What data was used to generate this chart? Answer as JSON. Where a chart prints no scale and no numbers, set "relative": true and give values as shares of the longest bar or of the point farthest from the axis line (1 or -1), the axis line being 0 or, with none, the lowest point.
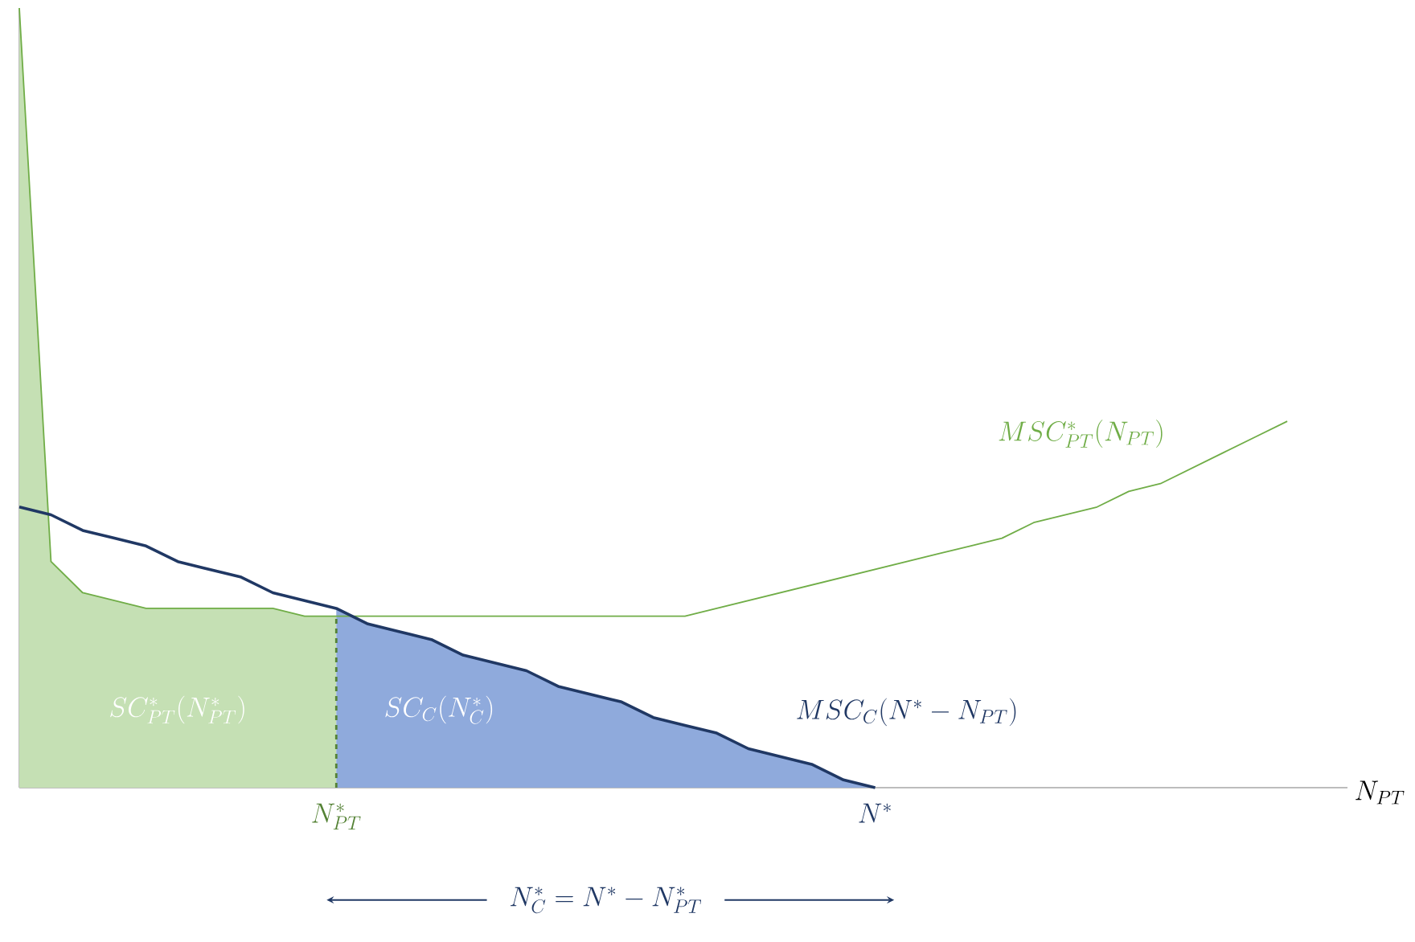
{
  "chart_data": {
    "type": "line",
    "relative": true,
    "xlabel": "N_{PT}",
    "categories": [
      null,
      null,
      null,
      null,
      null,
      null,
      null,
      null,
      null,
      null,
      null,
      null,
      null,
      null,
      null,
      null,
      null,
      null,
      null,
      null,
      null,
      null,
      null,
      null,
      null,
      null,
      null,
      null,
      null,
      null,
      null,
      null,
      null,
      null,
      null,
      null,
      null,
      null,
      null,
      null,
      null,
      null
    ],
    "series": [
      {
        "type": "area",
        "name": "SC_{PT}^*(N_{PT}^*)",
        "color": "#c5e0b4",
        "values": [
          1.0,
          0.29,
          0.25,
          0.24,
          0.23,
          0.23,
          0.23,
          0.23,
          0.23,
          0.22,
          0.22,
          null,
          null,
          null,
          null,
          null,
          null,
          null,
          null,
          null,
          null,
          null,
          null,
          null,
          null,
          null,
          null,
          null,
          null,
          null,
          null,
          null,
          null,
          null,
          null,
          null,
          null,
          null,
          null,
          null,
          null,
          null
        ]
      },
      {
        "type": "area",
        "name": "SC_C(N_C^*)",
        "color": "#8faadc",
        "values": [
          null,
          null,
          null,
          null,
          null,
          null,
          null,
          null,
          null,
          null,
          0.23,
          0.21,
          0.2,
          0.19,
          0.17,
          0.16,
          0.15,
          0.13,
          0.12,
          0.11,
          0.09,
          0.08,
          0.07,
          0.05,
          0.04,
          0.03,
          0.01,
          0.0,
          null,
          null,
          null,
          null,
          null,
          null,
          null,
          null,
          null,
          null,
          null,
          null,
          null,
          null
        ]
      },
      {
        "name": "MSC_{PT}^*(N_{PT})",
        "color": "#70ad47",
        "values": [
          1.0,
          0.29,
          0.25,
          0.24,
          0.23,
          0.23,
          0.23,
          0.23,
          0.23,
          0.22,
          0.22,
          0.22,
          0.22,
          0.22,
          0.22,
          0.22,
          0.22,
          0.22,
          0.22,
          0.22,
          0.22,
          0.22,
          0.23,
          0.24,
          0.25,
          0.26,
          0.27,
          0.28,
          0.29,
          0.3,
          0.31,
          0.32,
          0.34,
          0.35,
          0.36,
          0.38,
          0.39,
          0.41,
          0.43,
          0.45,
          0.47,
          null
        ]
      },
      {
        "name": "MSC_C(N^* - N_{PT})",
        "color": "#203864",
        "values": [
          0.36,
          0.35,
          0.33,
          0.32,
          0.31,
          0.29,
          0.28,
          0.27,
          0.25,
          0.24,
          0.23,
          0.21,
          0.2,
          0.19,
          0.17,
          0.16,
          0.15,
          0.13,
          0.12,
          0.11,
          0.09,
          0.08,
          0.07,
          0.05,
          0.04,
          0.03,
          0.01,
          0.0,
          null,
          null,
          null,
          null,
          null,
          null,
          null,
          null,
          null,
          null,
          null,
          null,
          null,
          null
        ]
      }
    ],
    "annotations": [
      "N_{PT}^*",
      "N^*",
      "N_C^* = N^* - N_{PT}^*"
    ],
    "marker": "none"
  }
}
